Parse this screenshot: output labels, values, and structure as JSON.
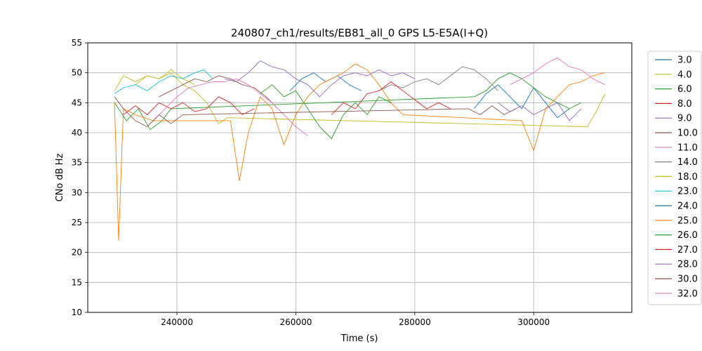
{
  "chart_data": {
    "type": "line",
    "title": "240807_ch1/results/EB81_all_0 GPS L5-E5A(I+Q)",
    "xlabel": "Time (s)",
    "ylabel": "CNo dB Hz",
    "xlim": [
      225000,
      316500
    ],
    "ylim": [
      10,
      55
    ],
    "xticks": [
      240000,
      260000,
      280000,
      300000
    ],
    "yticks": [
      10,
      15,
      20,
      25,
      30,
      35,
      40,
      45,
      50,
      55
    ],
    "grid": true,
    "legend_position": "outside-right",
    "series": [
      {
        "name": "3.0",
        "color": "#1f77b4",
        "points": [
          [
            290000,
            44
          ],
          [
            292000,
            46.5
          ],
          [
            294000,
            48
          ],
          [
            296000,
            46
          ],
          [
            298000,
            44
          ],
          [
            300000,
            47.5
          ],
          [
            302000,
            45
          ],
          [
            304000,
            42.5
          ],
          [
            306000,
            44
          ]
        ]
      },
      {
        "name": "4.0",
        "color": "#bcbd22",
        "points": [
          [
            229500,
            47
          ],
          [
            231000,
            49.5
          ],
          [
            233000,
            48.5
          ],
          [
            235000,
            49.5
          ],
          [
            237000,
            49
          ],
          [
            239000,
            50
          ],
          [
            241000,
            48
          ],
          [
            243000,
            47
          ],
          [
            245000,
            45
          ],
          [
            247000,
            41.5
          ],
          [
            248500,
            42.5
          ],
          [
            309000,
            41
          ],
          [
            310500,
            43.5
          ],
          [
            312000,
            46.5
          ]
        ]
      },
      {
        "name": "6.0",
        "color": "#2ca02c",
        "points": [
          [
            229500,
            45
          ],
          [
            231500,
            42
          ],
          [
            233500,
            44
          ],
          [
            235500,
            40.5
          ],
          [
            237500,
            42
          ],
          [
            239000,
            44
          ],
          [
            290000,
            46
          ],
          [
            292000,
            47
          ],
          [
            294000,
            49
          ],
          [
            296000,
            50
          ],
          [
            298000,
            49
          ],
          [
            300000,
            47.5
          ],
          [
            302000,
            46
          ],
          [
            304000,
            45
          ],
          [
            306000,
            44
          ],
          [
            308000,
            45
          ]
        ]
      },
      {
        "name": "8.0",
        "color": "#d62728",
        "points": [
          [
            231000,
            43
          ],
          [
            233000,
            44.5
          ],
          [
            235000,
            43
          ],
          [
            237000,
            45
          ],
          [
            239000,
            44
          ],
          [
            241000,
            45
          ],
          [
            243000,
            43.5
          ],
          [
            245000,
            44
          ],
          [
            247000,
            46
          ],
          [
            249000,
            45
          ],
          [
            251000,
            43
          ],
          [
            253000,
            44
          ]
        ]
      },
      {
        "name": "9.0",
        "color": "#9467bd",
        "points": [
          [
            294000,
            45
          ],
          [
            296000,
            43.5
          ],
          [
            298000,
            44.5
          ],
          [
            300000,
            43
          ],
          [
            302000,
            44
          ],
          [
            304000,
            45
          ],
          [
            306000,
            42
          ],
          [
            308000,
            44
          ]
        ]
      },
      {
        "name": "10.0",
        "color": "#8c564b",
        "points": [
          [
            237000,
            46
          ],
          [
            239000,
            47
          ],
          [
            241000,
            48
          ],
          [
            243000,
            49
          ],
          [
            245000,
            48.5
          ],
          [
            247000,
            49.5
          ],
          [
            249000,
            49
          ],
          [
            251000,
            48
          ],
          [
            253000,
            47.5
          ],
          [
            255000,
            46
          ],
          [
            257000,
            44
          ]
        ]
      },
      {
        "name": "11.0",
        "color": "#e377c2",
        "points": [
          [
            236000,
            42
          ],
          [
            238000,
            44
          ],
          [
            240000,
            46
          ],
          [
            242000,
            47.5
          ],
          [
            244000,
            48
          ],
          [
            246000,
            48.5
          ],
          [
            248000,
            48.5
          ],
          [
            250000,
            49
          ],
          [
            252000,
            48
          ],
          [
            254000,
            46.5
          ],
          [
            256000,
            45
          ],
          [
            258000,
            43
          ],
          [
            260000,
            41
          ],
          [
            262000,
            39.5
          ]
        ]
      },
      {
        "name": "14.0",
        "color": "#7f7f7f",
        "points": [
          [
            274000,
            47
          ],
          [
            276000,
            48
          ],
          [
            278000,
            47.5
          ],
          [
            280000,
            48.5
          ],
          [
            282000,
            49
          ],
          [
            284000,
            48
          ],
          [
            286000,
            49.5
          ],
          [
            288000,
            51
          ],
          [
            290000,
            50.5
          ],
          [
            292000,
            49
          ],
          [
            294000,
            47
          ]
        ]
      },
      {
        "name": "18.0",
        "color": "#bcbd22",
        "points": [
          [
            233000,
            48
          ],
          [
            235000,
            49.5
          ],
          [
            237000,
            49
          ],
          [
            239000,
            50.5
          ],
          [
            241000,
            49
          ],
          [
            243000,
            48
          ]
        ]
      },
      {
        "name": "23.0",
        "color": "#17becf",
        "points": [
          [
            229500,
            46.5
          ],
          [
            231000,
            47.5
          ],
          [
            233000,
            48
          ],
          [
            235000,
            47
          ],
          [
            237000,
            48.5
          ],
          [
            239000,
            49.5
          ],
          [
            241000,
            49
          ],
          [
            243000,
            50
          ],
          [
            244500,
            50.5
          ],
          [
            246000,
            49
          ]
        ]
      },
      {
        "name": "24.0",
        "color": "#1f77b4",
        "points": [
          [
            259000,
            47
          ],
          [
            261000,
            49
          ],
          [
            263000,
            50
          ],
          [
            265000,
            48.5
          ],
          [
            267000,
            49.5
          ],
          [
            269000,
            48
          ],
          [
            271000,
            47
          ]
        ]
      },
      {
        "name": "25.0",
        "color": "#ff7f0e",
        "points": [
          [
            229500,
            45
          ],
          [
            230200,
            22
          ],
          [
            231000,
            44
          ],
          [
            233000,
            43
          ],
          [
            236000,
            42
          ],
          [
            249000,
            42
          ],
          [
            250500,
            32
          ],
          [
            252000,
            40
          ],
          [
            254000,
            46
          ],
          [
            256000,
            44
          ],
          [
            258000,
            38
          ],
          [
            260000,
            43
          ],
          [
            262000,
            46
          ],
          [
            264000,
            48
          ],
          [
            266000,
            49
          ],
          [
            268000,
            50
          ],
          [
            270000,
            51.5
          ],
          [
            272000,
            50.5
          ],
          [
            274000,
            48
          ],
          [
            276000,
            45
          ],
          [
            278000,
            43
          ],
          [
            298000,
            42
          ],
          [
            300000,
            37
          ],
          [
            302000,
            44
          ],
          [
            304000,
            46
          ],
          [
            306000,
            48
          ],
          [
            308000,
            48.5
          ],
          [
            310000,
            49.5
          ],
          [
            312000,
            50
          ]
        ]
      },
      {
        "name": "26.0",
        "color": "#2ca02c",
        "points": [
          [
            254000,
            46.5
          ],
          [
            256000,
            48
          ],
          [
            258000,
            46
          ],
          [
            260000,
            47
          ],
          [
            262000,
            44
          ],
          [
            264000,
            41
          ],
          [
            266000,
            39
          ],
          [
            268000,
            43
          ],
          [
            270000,
            45
          ],
          [
            272000,
            43
          ],
          [
            274000,
            46
          ],
          [
            276000,
            45
          ]
        ]
      },
      {
        "name": "27.0",
        "color": "#d62728",
        "points": [
          [
            266000,
            43
          ],
          [
            268000,
            45
          ],
          [
            270000,
            44
          ],
          [
            272000,
            46.5
          ],
          [
            274000,
            47
          ],
          [
            276000,
            48.5
          ],
          [
            278000,
            47
          ],
          [
            280000,
            45.5
          ],
          [
            282000,
            44
          ],
          [
            284000,
            45
          ],
          [
            286000,
            44
          ]
        ]
      },
      {
        "name": "28.0",
        "color": "#9467bd",
        "points": [
          [
            248000,
            49
          ],
          [
            250000,
            48.5
          ],
          [
            252000,
            50
          ],
          [
            254000,
            52
          ],
          [
            256000,
            51
          ],
          [
            258000,
            50.5
          ],
          [
            260000,
            49
          ],
          [
            262000,
            48
          ],
          [
            264000,
            46
          ],
          [
            266000,
            48
          ],
          [
            268000,
            49.5
          ],
          [
            270000,
            50
          ],
          [
            272000,
            49.5
          ],
          [
            274000,
            50.5
          ],
          [
            276000,
            49.5
          ],
          [
            278000,
            50
          ],
          [
            280000,
            49
          ]
        ]
      },
      {
        "name": "30.0",
        "color": "#8c564b",
        "points": [
          [
            229500,
            46
          ],
          [
            231000,
            44
          ],
          [
            233000,
            42
          ],
          [
            235000,
            41
          ],
          [
            237000,
            43
          ],
          [
            239000,
            41.5
          ],
          [
            241000,
            43
          ],
          [
            289000,
            44
          ],
          [
            291000,
            43
          ],
          [
            293000,
            44.5
          ],
          [
            295000,
            43
          ],
          [
            297000,
            44
          ]
        ]
      },
      {
        "name": "32.0",
        "color": "#e377c2",
        "points": [
          [
            296000,
            48
          ],
          [
            298000,
            49
          ],
          [
            300000,
            50
          ],
          [
            302000,
            51.5
          ],
          [
            304000,
            52.5
          ],
          [
            306000,
            51
          ],
          [
            308000,
            50.5
          ],
          [
            310000,
            49
          ],
          [
            312000,
            48
          ]
        ]
      }
    ]
  }
}
